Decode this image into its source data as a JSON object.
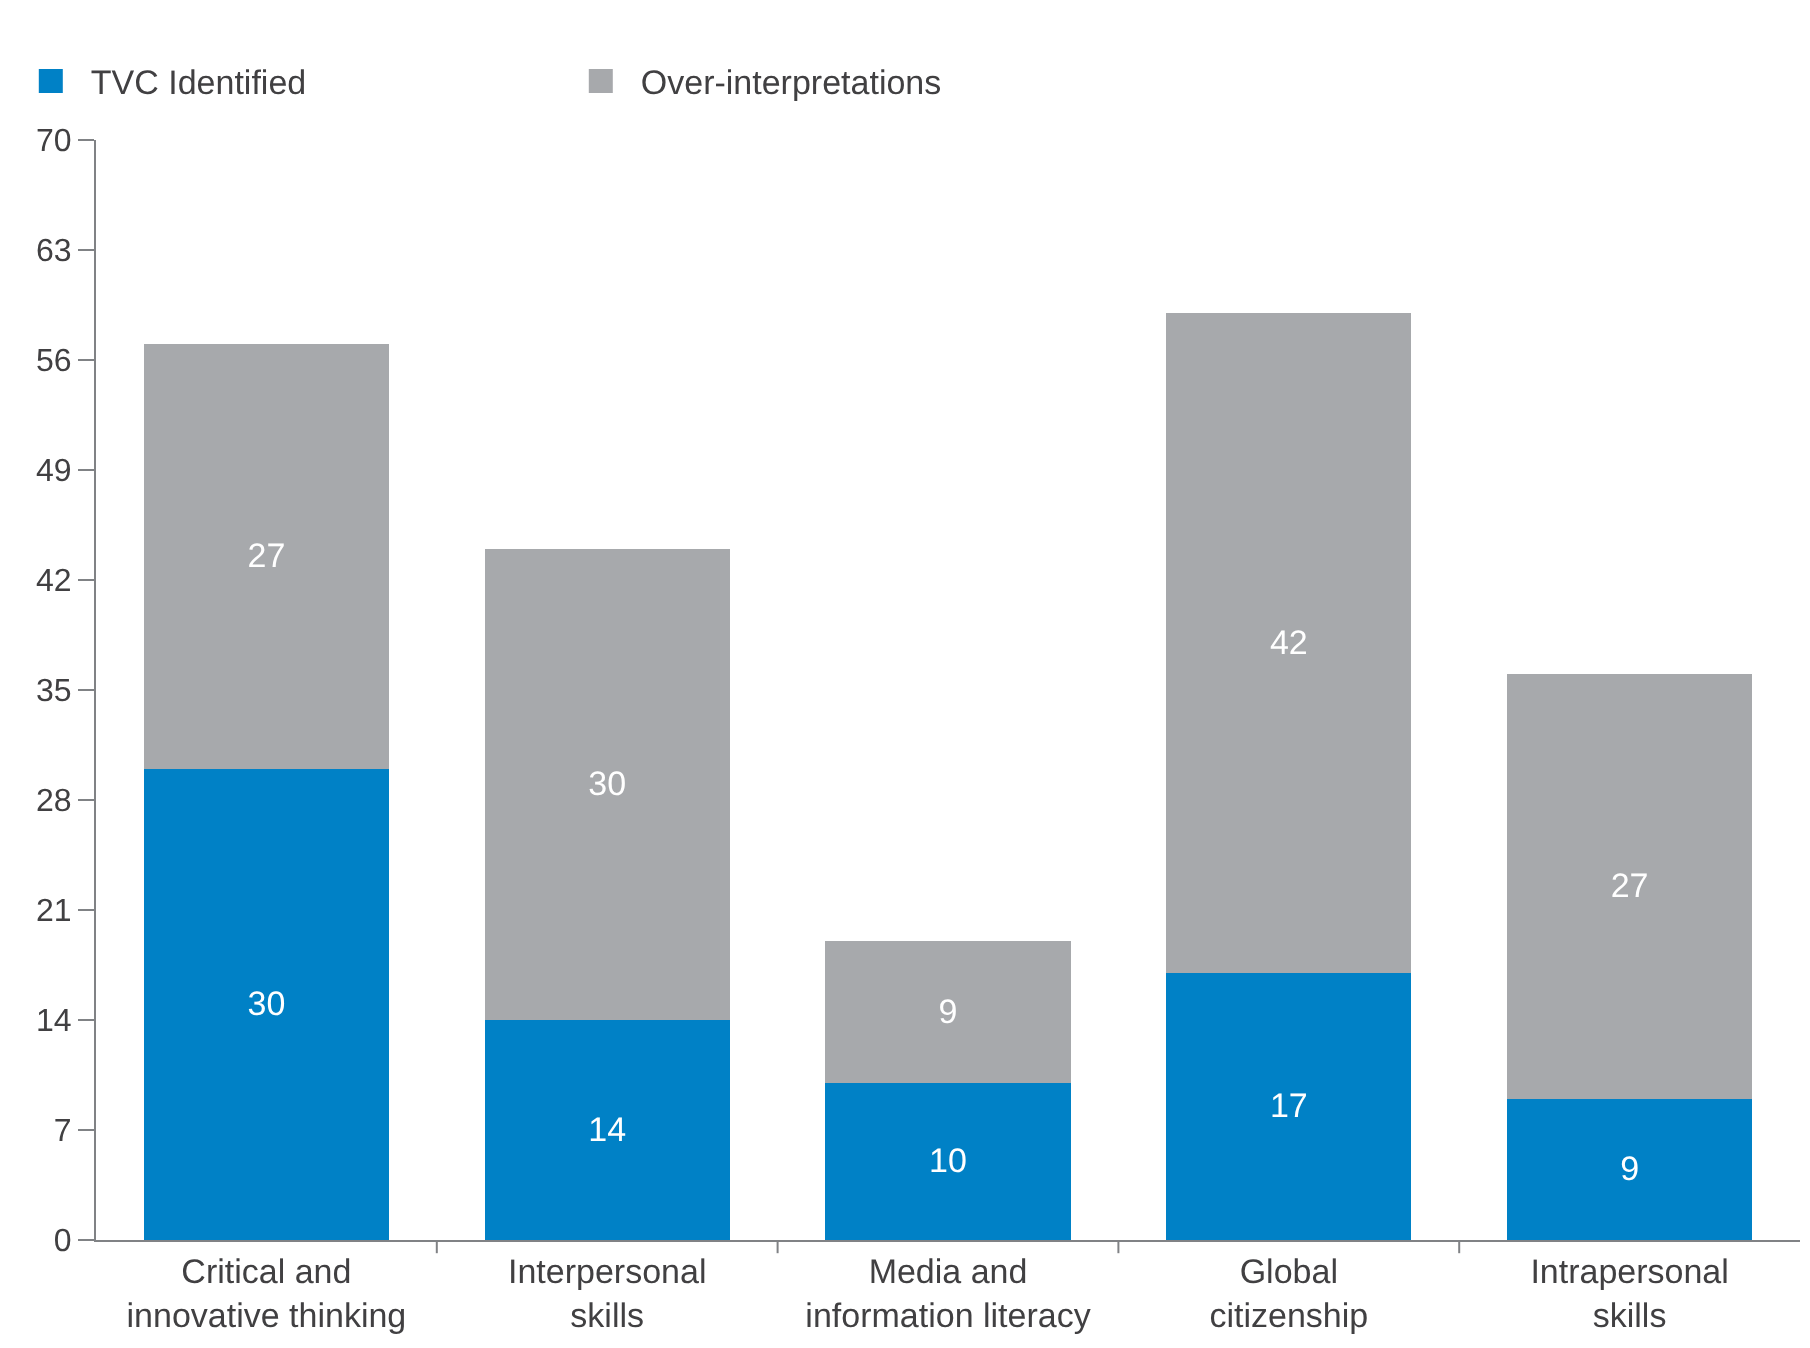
{
  "chart_data": {
    "type": "bar",
    "stacked": true,
    "data_labels": true,
    "categories": [
      "Critical and\ninnovative thinking",
      "Interpersonal\nskills",
      "Media and\ninformation literacy",
      "Global\ncitizenship",
      "Intrapersonal\nskills"
    ],
    "series": [
      {
        "name": "TVC Identified",
        "color": "#0081c6",
        "values": [
          30,
          14,
          10,
          17,
          9
        ]
      },
      {
        "name": "Over-interpretations",
        "color": "#a7a9ac",
        "values": [
          27,
          30,
          9,
          42,
          27
        ]
      }
    ],
    "ylim": [
      0,
      70
    ],
    "yticks": [
      0,
      7,
      14,
      21,
      28,
      35,
      42,
      49,
      56,
      63,
      70
    ],
    "legend": "top left"
  }
}
